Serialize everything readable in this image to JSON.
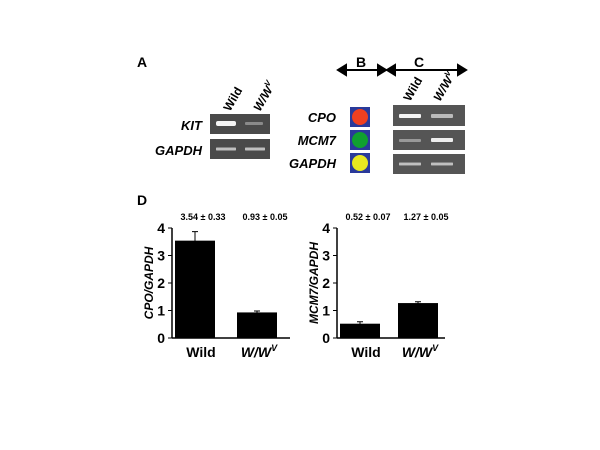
{
  "genotypes": [
    {
      "name": "Wild"
    },
    {
      "name": "W/W",
      "sup": "V"
    }
  ],
  "panel_a": {
    "label": "A",
    "rows": [
      "KIT",
      "GAPDH"
    ]
  },
  "panel_b": {
    "label": "B",
    "rows": [
      "CPO",
      "MCM7",
      "GAPDH"
    ]
  },
  "panel_c": {
    "label": "C"
  },
  "panel_d": {
    "label": "D"
  },
  "chart_data": [
    {
      "type": "bar",
      "ylabel": "CPO/GAPDH",
      "categories": [
        "Wild",
        "W/W"
      ],
      "category_sup": [
        null,
        "V"
      ],
      "values": [
        3.54,
        0.93
      ],
      "errors": [
        0.33,
        0.05
      ],
      "value_labels": [
        "3.54 ± 0.33",
        "0.93 ± 0.05"
      ],
      "color": "#000000",
      "ylim": [
        0,
        4
      ],
      "yticks": [
        0,
        1,
        2,
        3,
        4
      ]
    },
    {
      "type": "bar",
      "ylabel": "MCM7/GAPDH",
      "categories": [
        "Wild",
        "W/W"
      ],
      "category_sup": [
        null,
        "V"
      ],
      "values": [
        0.52,
        1.27
      ],
      "errors": [
        0.07,
        0.05
      ],
      "value_labels": [
        "0.52 ± 0.07",
        "1.27 ± 0.05"
      ],
      "color": "#000000",
      "ylim": [
        0,
        4
      ],
      "yticks": [
        0,
        1,
        2,
        3,
        4
      ]
    }
  ]
}
